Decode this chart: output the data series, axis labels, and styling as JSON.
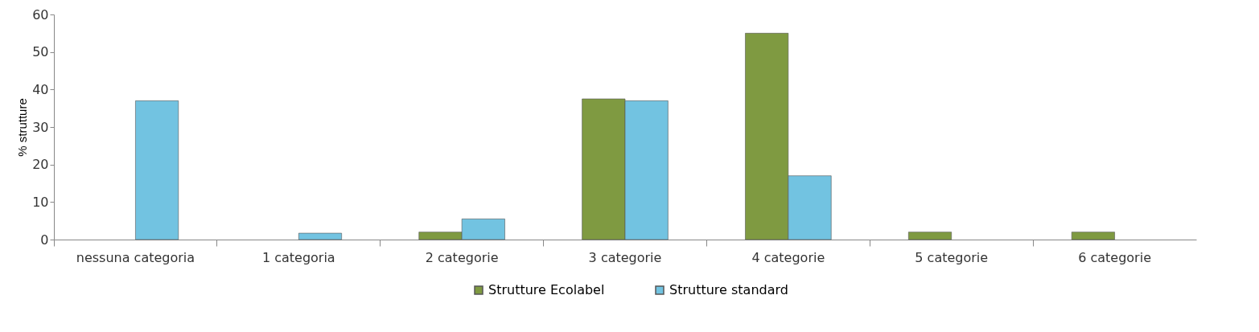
{
  "chart_data": {
    "type": "bar",
    "ylabel": "% strutture",
    "categories": [
      "nessuna categoria",
      "1 categoria",
      "2 categorie",
      "3 categorie",
      "4 categorie",
      "5 categorie",
      "6 categorie"
    ],
    "series": [
      {
        "name": "Strutture Ecolabel",
        "color": "#7f9a41",
        "values": [
          null,
          null,
          2,
          37.5,
          55,
          2,
          2
        ]
      },
      {
        "name": "Strutture standard",
        "color": "#72c3e1",
        "values": [
          37,
          1.7,
          5.5,
          37,
          17,
          null,
          null
        ]
      }
    ],
    "ylim": [
      0,
      60
    ],
    "yticks": [
      0,
      10,
      20,
      30,
      40,
      50,
      60
    ],
    "grid": false,
    "legend": "bottom"
  }
}
